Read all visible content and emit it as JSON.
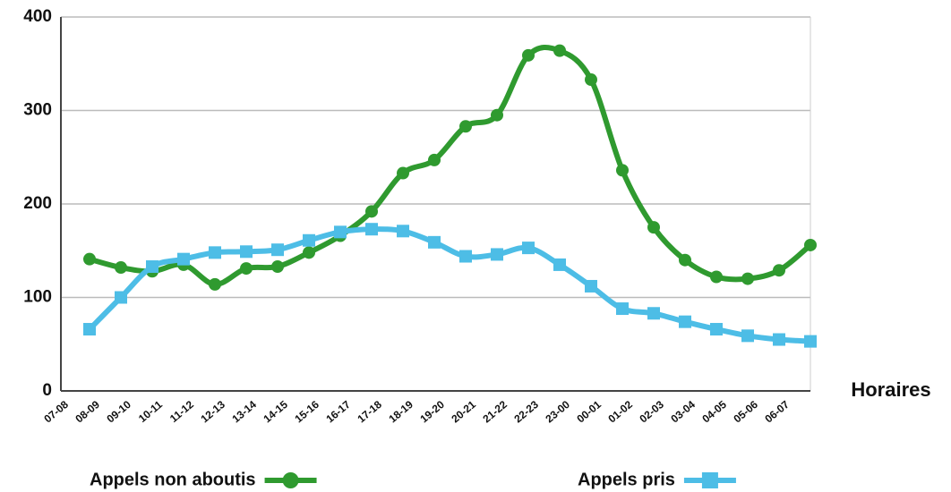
{
  "chart_data": {
    "type": "line",
    "x_label": "Horaires",
    "categories": [
      "07-08",
      "08-09",
      "09-10",
      "10-11",
      "11-12",
      "12-13",
      "13-14",
      "14-15",
      "15-16",
      "16-17",
      "17-18",
      "18-19",
      "19-20",
      "20-21",
      "21-22",
      "22-23",
      "23-00",
      "00-01",
      "01-02",
      "02-03",
      "03-04",
      "04-05",
      "05-06",
      "06-07"
    ],
    "series": [
      {
        "name": "Appels non aboutis",
        "color": "#2f9a2f",
        "marker": "circle",
        "values": [
          141,
          132,
          128,
          135,
          114,
          131,
          133,
          148,
          166,
          192,
          233,
          247,
          283,
          295,
          359,
          364,
          333,
          236,
          175,
          140,
          122,
          120,
          129,
          156
        ]
      },
      {
        "name": "Appels pris",
        "color": "#4dbde6",
        "marker": "square",
        "values": [
          66,
          100,
          133,
          141,
          148,
          149,
          151,
          161,
          170,
          173,
          171,
          159,
          144,
          146,
          153,
          135,
          112,
          88,
          83,
          74,
          66,
          59,
          55,
          53
        ]
      }
    ],
    "ylim": [
      0,
      400
    ],
    "yticks": [
      0,
      100,
      200,
      300,
      400
    ],
    "grid": true
  }
}
